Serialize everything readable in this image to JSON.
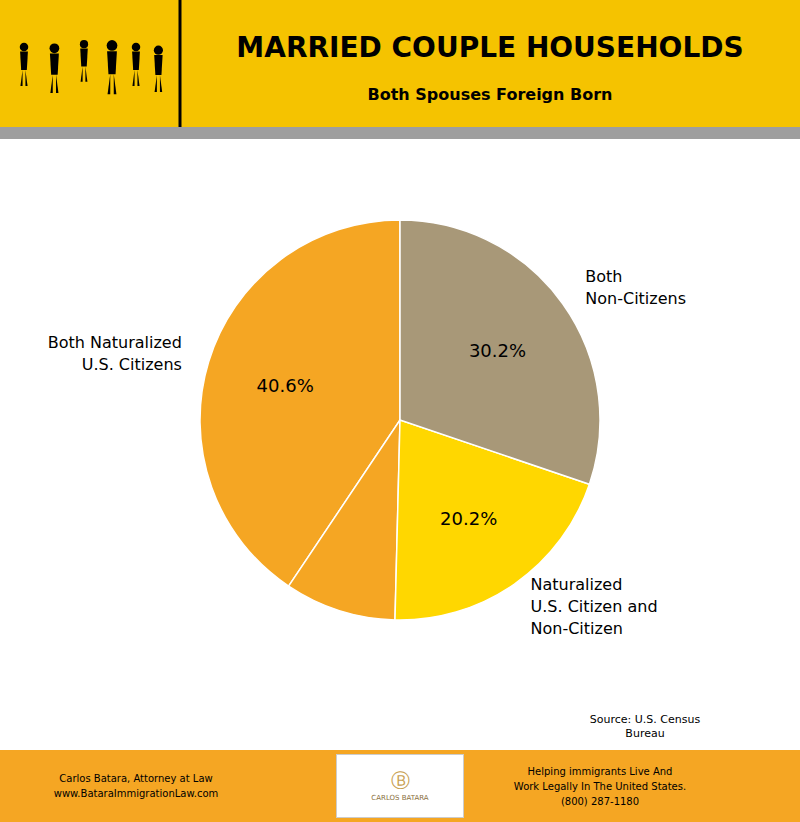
{
  "chart_data": {
    "type": "pie",
    "title": "MARRIED COUPLE HOUSEHOLDS",
    "subtitle": "Both Spouses Foreign Born",
    "categories": [
      "Both Naturalized\nU.S. Citizens",
      null,
      "Naturalized\nU.S. Citizen and\nNon-Citizen",
      "Both\nNon-Citizens"
    ],
    "values": [
      40.6,
      9.0,
      20.2,
      30.2
    ],
    "value_labels": [
      "40.6%",
      null,
      "20.2%",
      "30.2%"
    ],
    "colors": [
      "#F5A623",
      "#F5A623",
      "#FFD700",
      "#A89878"
    ],
    "data_labels": true,
    "annotations": [
      "Source: U.S. Census\nBureau",
      "Carlos Batara, Attorney at Law\nwww.BataraImmigrationLaw.com",
      "Helping immigrants Live And\nWork Legally In The United States.\n(800) 287-1180",
      "Ⓑ",
      "CARLOS BATARA"
    ]
  }
}
